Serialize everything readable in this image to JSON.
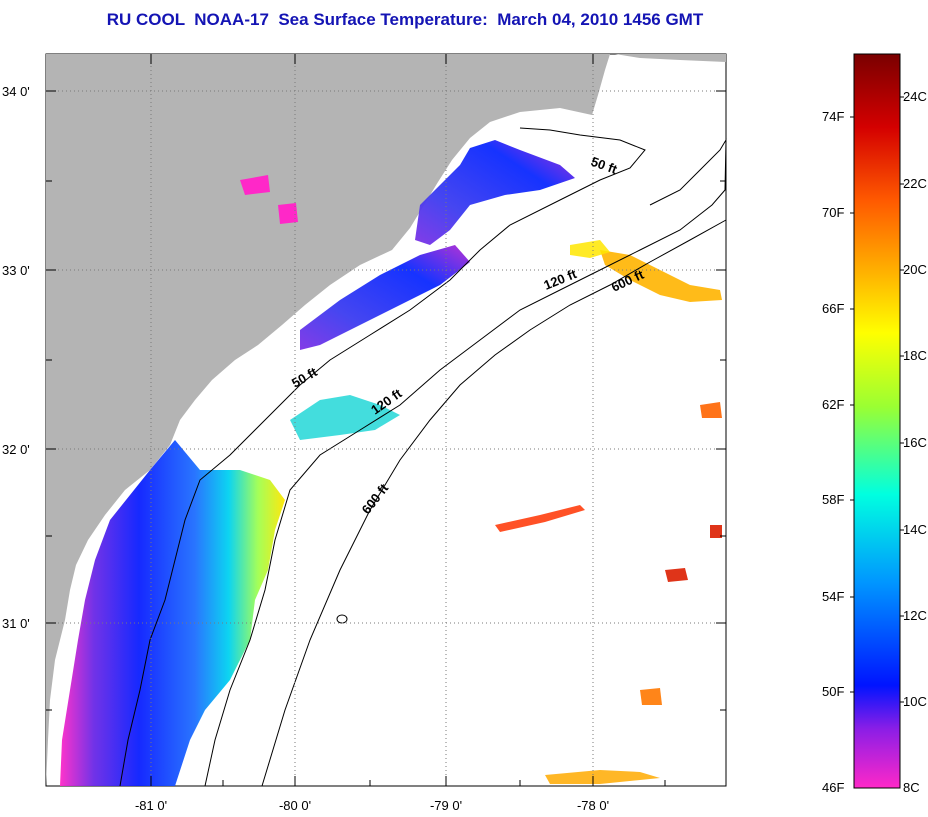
{
  "title": "RU COOL  NOAA-17  Sea Surface Temperature:  March 04, 2010 1456 GMT",
  "map": {
    "lon_labels": [
      "-81 0'",
      "-80 0'",
      "-79 0'",
      "-78 0'"
    ],
    "lat_labels": [
      "34 0'",
      "33 0'",
      "32 0'",
      "31 0'"
    ],
    "contour_labels": [
      "50 ft",
      "120 ft",
      "600 ft",
      "50 ft",
      "120 ft",
      "600 ft"
    ],
    "colors": {
      "land": "#b4b4b4",
      "cloud": "#ffffff",
      "isobath": "#000000",
      "grid": "#7a7a7a"
    }
  },
  "colorbar": {
    "fahrenheit_labels": [
      "74F",
      "70F",
      "66F",
      "62F",
      "58F",
      "54F",
      "50F",
      "46F"
    ],
    "celsius_labels": [
      "24C",
      "22C",
      "20C",
      "18C",
      "16C",
      "14C",
      "12C",
      "10C",
      "8C"
    ],
    "gradient_colors": [
      "#7a0000",
      "#d40000",
      "#ff5a00",
      "#ffb400",
      "#ffff00",
      "#9bff32",
      "#00ffe0",
      "#0096ff",
      "#0014ff",
      "#8c1ee6",
      "#ff28c8"
    ]
  }
}
